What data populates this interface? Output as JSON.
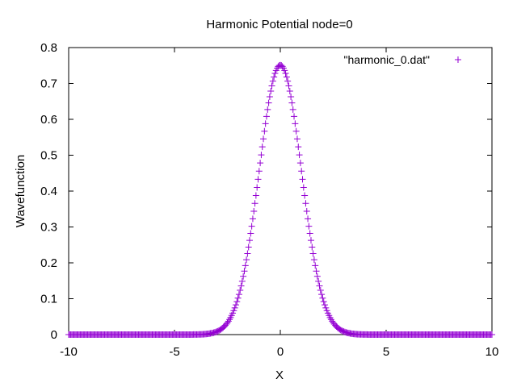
{
  "chart_data": {
    "type": "scatter",
    "title": "Harmonic Potential node=0",
    "xlabel": "X",
    "ylabel": "Wavefunction",
    "xlim": [
      -10,
      10
    ],
    "ylim": [
      0,
      0.8
    ],
    "x_ticks": [
      "-10",
      "-5",
      "0",
      "5",
      "10"
    ],
    "y_ticks": [
      "0",
      "0.1",
      "0.2",
      "0.3",
      "0.4",
      "0.5",
      "0.6",
      "0.7",
      "0.8"
    ],
    "grid": false,
    "legend_position": "top-right",
    "marker": "+",
    "series": [
      {
        "name": "\"harmonic_0.dat\"",
        "color": "#9400d3",
        "x_range": [
          -10,
          10
        ],
        "x_step": 0.05,
        "function": "0.7511 * exp(-x^2 / 2)",
        "peak": 0.7511
      }
    ]
  }
}
